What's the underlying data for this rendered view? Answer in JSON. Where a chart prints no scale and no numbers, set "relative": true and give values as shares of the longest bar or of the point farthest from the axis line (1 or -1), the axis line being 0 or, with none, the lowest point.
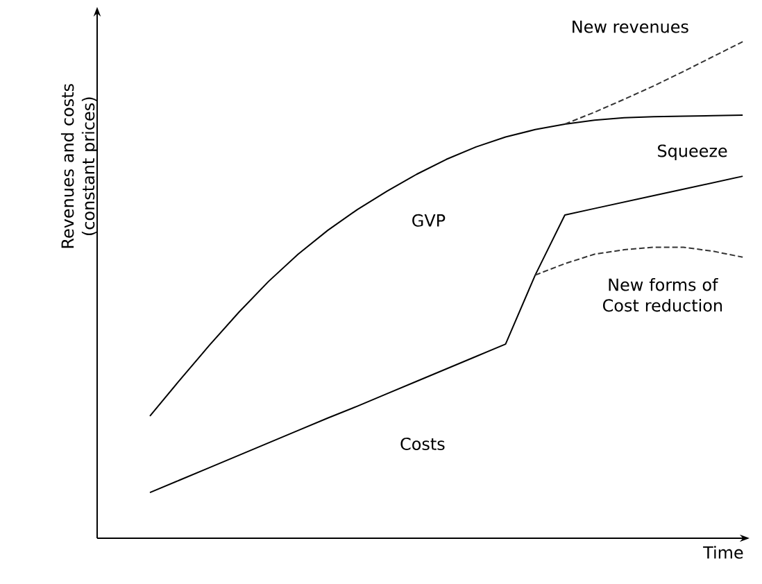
{
  "chart_data": {
    "type": "line",
    "relative": true,
    "xlabel": "Time",
    "ylabel": "Revenues and costs (constant prices)",
    "tick_labels": false,
    "categories": [
      null,
      null,
      null,
      null,
      null,
      null,
      null,
      null,
      null,
      null,
      null,
      null,
      null,
      null,
      null,
      null,
      null,
      null,
      null,
      null,
      null
    ],
    "series": [
      {
        "name": "GVP",
        "color": "#000000",
        "line_style": "solid",
        "values": [
          0.246,
          0.318,
          0.388,
          0.455,
          0.517,
          0.572,
          0.62,
          0.662,
          0.699,
          0.733,
          0.763,
          0.788,
          0.808,
          0.823,
          0.834,
          0.842,
          0.847,
          0.849,
          0.85,
          0.851,
          0.852
        ]
      },
      {
        "name": "New revenues",
        "color": "#333333",
        "line_style": "dashed",
        "values": [
          null,
          null,
          null,
          null,
          null,
          null,
          null,
          null,
          null,
          null,
          null,
          null,
          null,
          null,
          0.834,
          0.858,
          0.884,
          0.911,
          0.94,
          0.97,
          1.0
        ]
      },
      {
        "name": "Costs",
        "color": "#000000",
        "line_style": "solid",
        "values": [
          0.092,
          0.117,
          0.142,
          0.167,
          0.192,
          0.217,
          0.242,
          0.266,
          0.291,
          0.316,
          0.341,
          0.366,
          0.391,
          0.53,
          0.651,
          0.664,
          0.677,
          0.69,
          0.703,
          0.716,
          0.729
        ]
      },
      {
        "name": "New forms of Cost reduction",
        "color": "#333333",
        "line_style": "dashed",
        "values": [
          null,
          null,
          null,
          null,
          null,
          null,
          null,
          null,
          null,
          null,
          null,
          null,
          null,
          0.53,
          0.553,
          0.572,
          0.581,
          0.586,
          0.586,
          0.578,
          0.566
        ]
      }
    ],
    "annotations": [
      "Squeeze"
    ]
  }
}
